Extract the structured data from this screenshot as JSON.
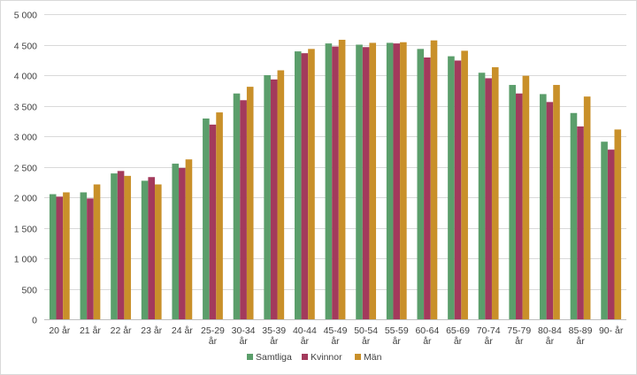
{
  "chart_data": {
    "type": "bar",
    "title": "",
    "xlabel": "",
    "ylabel": "",
    "ylim": [
      0,
      5000
    ],
    "yticks": [
      0,
      500,
      1000,
      1500,
      2000,
      2500,
      3000,
      3500,
      4000,
      4500,
      5000
    ],
    "ytick_labels": [
      "0",
      "500",
      "1 000",
      "1 500",
      "2 000",
      "2 500",
      "3 000",
      "3 500",
      "4 000",
      "4 500",
      "5 000"
    ],
    "grid": true,
    "legend_position": "bottom",
    "categories": [
      [
        "20 år"
      ],
      [
        "21 år"
      ],
      [
        "22 år"
      ],
      [
        "23 år"
      ],
      [
        "24 år"
      ],
      [
        "25-29",
        "år"
      ],
      [
        "30-34",
        "år"
      ],
      [
        "35-39",
        "år"
      ],
      [
        "40-44",
        "år"
      ],
      [
        "45-49",
        "år"
      ],
      [
        "50-54",
        "år"
      ],
      [
        "55-59",
        "år"
      ],
      [
        "60-64",
        "år"
      ],
      [
        "65-69",
        "år"
      ],
      [
        "70-74",
        "år"
      ],
      [
        "75-79",
        "år"
      ],
      [
        "80-84",
        "år"
      ],
      [
        "85-89",
        "år"
      ],
      [
        "90- år"
      ]
    ],
    "series": [
      {
        "name": "Samtliga",
        "color": "#5b9e6b",
        "values": [
          2050,
          2080,
          2390,
          2270,
          2550,
          3290,
          3700,
          4000,
          4390,
          4520,
          4500,
          4530,
          4430,
          4310,
          4040,
          3840,
          3690,
          3380,
          2910
        ]
      },
      {
        "name": "Kvinnor",
        "color": "#a33a5c",
        "values": [
          2010,
          1980,
          2430,
          2330,
          2480,
          3190,
          3590,
          3930,
          4360,
          4470,
          4460,
          4520,
          4290,
          4240,
          3950,
          3700,
          3560,
          3160,
          2780
        ]
      },
      {
        "name": "Män",
        "color": "#c9902a",
        "values": [
          2080,
          2210,
          2350,
          2210,
          2620,
          3390,
          3810,
          4080,
          4430,
          4580,
          4530,
          4540,
          4570,
          4400,
          4130,
          3990,
          3840,
          3650,
          3110
        ]
      }
    ]
  }
}
